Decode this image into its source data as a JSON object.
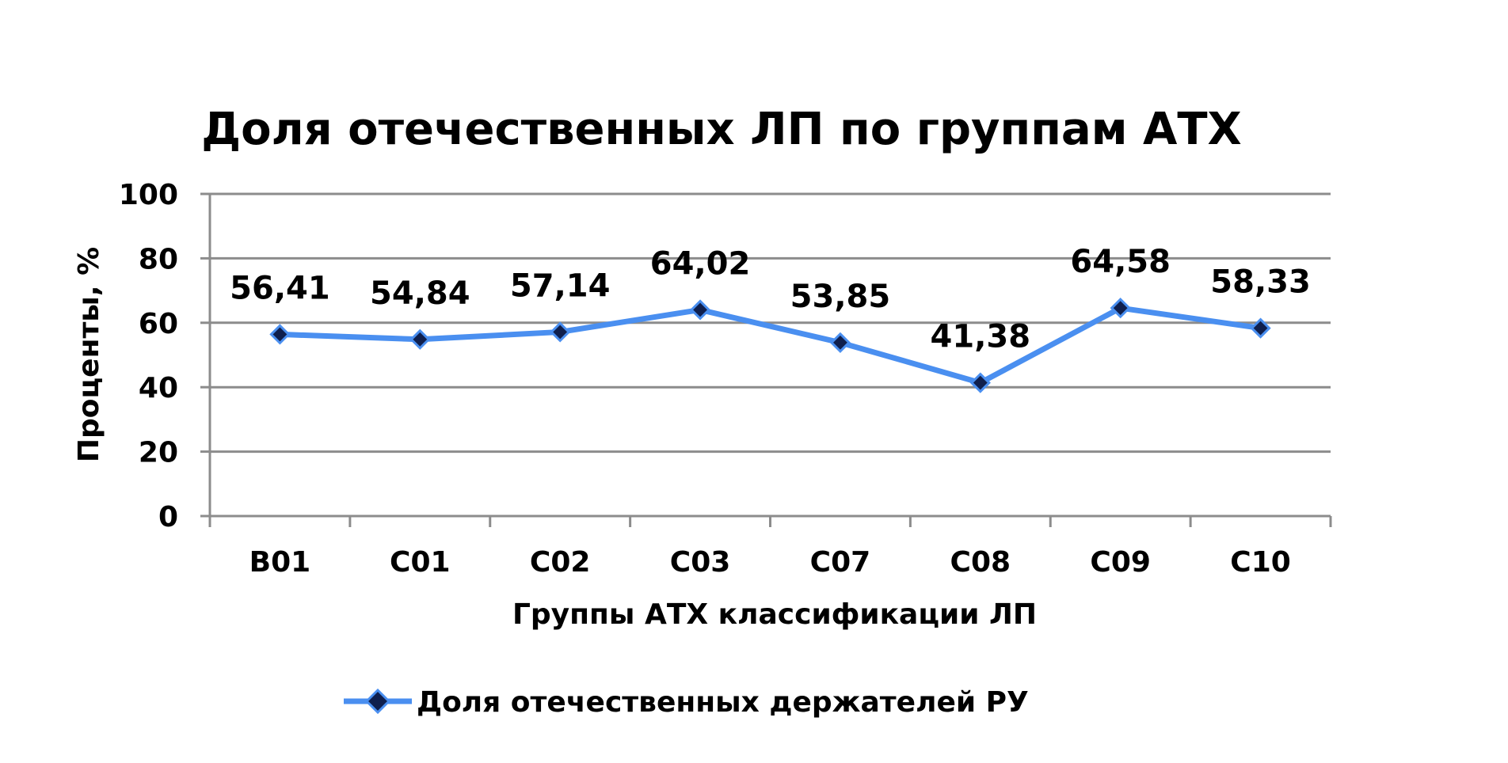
{
  "chart_data": {
    "type": "line",
    "title": "Доля отечественных ЛП по группам АТХ",
    "xlabel": "Группы АТХ классификации ЛП",
    "ylabel": "Проценты, %",
    "categories": [
      "B01",
      "C01",
      "C02",
      "C03",
      "C07",
      "C08",
      "C09",
      "C10"
    ],
    "series": [
      {
        "name": "Доля отечественных держателей РУ",
        "values": [
          56.41,
          54.84,
          57.14,
          64.02,
          53.85,
          41.38,
          64.58,
          58.33
        ],
        "labels": [
          "56,41",
          "54,84",
          "57,14",
          "64,02",
          "53,85",
          "41,38",
          "64,58",
          "58,33"
        ]
      }
    ],
    "ylim": [
      0,
      100
    ],
    "yticks": [
      "0",
      "20",
      "40",
      "60",
      "80",
      "100"
    ],
    "grid": true,
    "legend": "bottom",
    "colors": {
      "line": "#4a8ff0",
      "marker_fill": "#0f1f4d",
      "marker_stroke": "#4a8ff0",
      "grid": "#8c8c8c"
    }
  }
}
